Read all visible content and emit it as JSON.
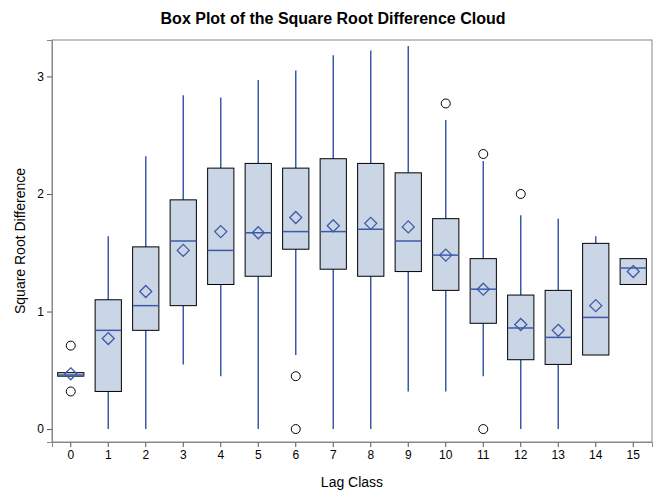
{
  "chart_data": {
    "type": "box",
    "title": "Box Plot of the Square Root Difference Cloud",
    "x_label": "Lag Class",
    "y_label": "Square Root Difference",
    "categories": [
      "0",
      "1",
      "2",
      "3",
      "4",
      "5",
      "6",
      "7",
      "8",
      "9",
      "10",
      "11",
      "12",
      "13",
      "14",
      "15"
    ],
    "min": [
      0.45,
      0,
      0,
      0.55,
      0.45,
      0,
      0.63,
      0,
      0,
      0.32,
      0.32,
      0.45,
      0,
      0,
      0.63,
      1.23
    ],
    "q1": [
      0.45,
      0.32,
      0.84,
      1.05,
      1.23,
      1.3,
      1.53,
      1.36,
      1.3,
      1.34,
      1.18,
      0.9,
      0.59,
      0.55,
      0.63,
      1.23
    ],
    "median": [
      0.46,
      0.84,
      1.05,
      1.6,
      1.52,
      1.67,
      1.68,
      1.68,
      1.7,
      1.6,
      1.48,
      1.19,
      0.86,
      0.78,
      0.95,
      1.37
    ],
    "q3": [
      0.48,
      1.1,
      1.55,
      1.95,
      2.22,
      2.26,
      2.22,
      2.3,
      2.26,
      2.18,
      1.79,
      1.45,
      1.14,
      1.18,
      1.58,
      1.45
    ],
    "max": [
      0.48,
      1.64,
      2.32,
      2.84,
      2.82,
      2.97,
      3.05,
      3.18,
      3.22,
      3.26,
      2.63,
      2.28,
      1.82,
      1.79,
      1.64,
      1.45
    ],
    "mean": [
      0.47,
      0.77,
      1.17,
      1.52,
      1.68,
      1.67,
      1.8,
      1.73,
      1.75,
      1.72,
      1.48,
      1.19,
      0.89,
      0.84,
      1.05,
      1.34
    ],
    "outliers": [
      [
        0.32,
        0.71
      ],
      [],
      [],
      [],
      [],
      [],
      [
        0.45,
        0
      ],
      [],
      [],
      [],
      [
        2.77
      ],
      [
        2.34,
        0
      ],
      [
        2.0
      ],
      [],
      [],
      []
    ],
    "color": "#cad5e5",
    "ylim": [
      -0.11,
      3.31
    ],
    "yticks": [
      0,
      1,
      2,
      3
    ]
  }
}
